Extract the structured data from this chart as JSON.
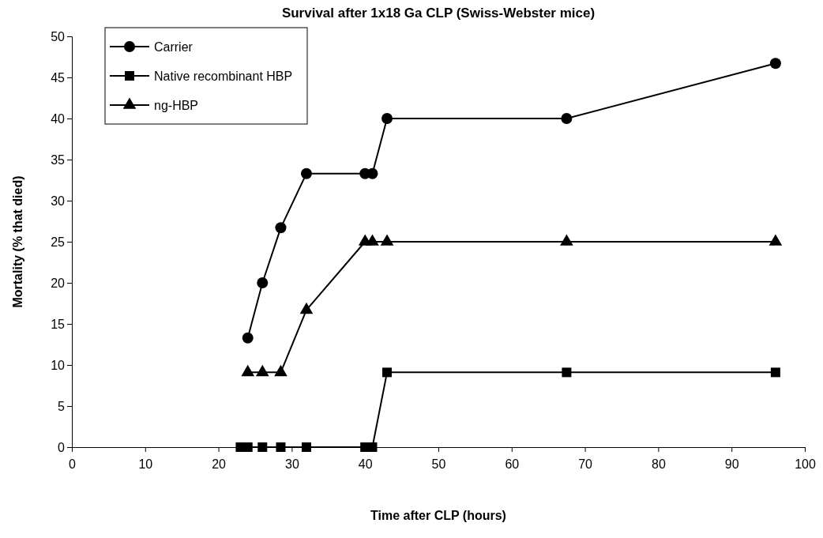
{
  "chart_data": {
    "type": "line",
    "title": "Survival after 1x18 Ga CLP (Swiss-Webster mice)",
    "xlabel": "Time after CLP (hours)",
    "ylabel": "Mortality (% that died)",
    "xlim": [
      0,
      100
    ],
    "xticks": [
      0,
      10,
      20,
      30,
      40,
      50,
      60,
      70,
      80,
      90,
      100
    ],
    "ylim": [
      0,
      50
    ],
    "yticks": [
      0,
      5,
      10,
      15,
      20,
      25,
      30,
      35,
      40,
      45,
      50
    ],
    "legend": "top left",
    "grid": false,
    "series": [
      {
        "name": "Carrier",
        "color": "#000000",
        "marker": "circle",
        "x": [
          24,
          26,
          28.5,
          32,
          40,
          41,
          43,
          67.5,
          96
        ],
        "values": [
          13.3,
          20,
          26.7,
          33.3,
          33.3,
          33.3,
          40,
          40,
          46.7
        ]
      },
      {
        "name": "Native recombinant HBP",
        "color": "#000000",
        "marker": "square",
        "x": [
          23,
          24,
          26,
          28.5,
          32,
          40,
          41,
          43,
          67.5,
          96
        ],
        "values": [
          0,
          0,
          0,
          0,
          0,
          0,
          0,
          9.1,
          9.1,
          9.1
        ]
      },
      {
        "name": "ng-HBP",
        "color": "#000000",
        "marker": "triangle",
        "x": [
          24,
          26,
          28.5,
          32,
          40,
          41,
          43,
          67.5,
          96
        ],
        "values": [
          9.1,
          9.1,
          9.1,
          16.7,
          25,
          25,
          25,
          25,
          25
        ]
      }
    ]
  }
}
